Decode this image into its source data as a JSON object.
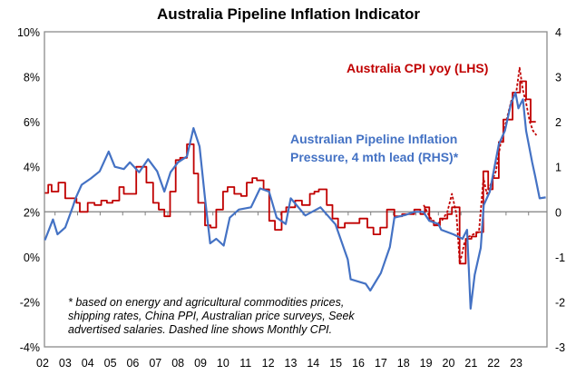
{
  "chart_data": {
    "type": "line",
    "title": "Australia Pipeline Inflation Indicator",
    "xlabel": "",
    "x_tick_labels": [
      "02",
      "03",
      "04",
      "05",
      "06",
      "07",
      "08",
      "09",
      "10",
      "11",
      "12",
      "13",
      "14",
      "15",
      "16",
      "17",
      "18",
      "19",
      "20",
      "21",
      "22",
      "23"
    ],
    "x_tick_years": [
      2002,
      2003,
      2004,
      2005,
      2006,
      2007,
      2008,
      2009,
      2010,
      2011,
      2012,
      2013,
      2014,
      2015,
      2016,
      2017,
      2018,
      2019,
      2020,
      2021,
      2022,
      2023
    ],
    "xlim": [
      2002,
      2024.4
    ],
    "y_left": {
      "ylim": [
        -4,
        10
      ],
      "ticks": [
        10,
        8,
        6,
        4,
        2,
        0,
        -2,
        -4
      ],
      "tick_labels": [
        "10%",
        "8%",
        "6%",
        "4%",
        "2%",
        "0%",
        "-2%",
        "-4%"
      ]
    },
    "y_right": {
      "ylim": [
        -3,
        4
      ],
      "ticks": [
        4,
        3,
        2,
        1,
        0,
        -1,
        -2,
        -3
      ],
      "tick_labels": [
        "4",
        "3",
        "2",
        "1",
        "0",
        "-1",
        "-2",
        "-3"
      ]
    },
    "grid": false,
    "series": [
      {
        "name": "Australia CPI yoy (LHS)",
        "axis": "left",
        "style": "step",
        "color": "#c00000",
        "points": [
          [
            2002.1,
            2.84
          ],
          [
            2002.25,
            3.2
          ],
          [
            2002.4,
            2.9
          ],
          [
            2002.7,
            3.3
          ],
          [
            2003.0,
            2.6
          ],
          [
            2003.5,
            2.4
          ],
          [
            2003.65,
            2.0
          ],
          [
            2004.0,
            2.4
          ],
          [
            2004.3,
            2.3
          ],
          [
            2004.6,
            2.5
          ],
          [
            2004.85,
            2.4
          ],
          [
            2005.1,
            2.5
          ],
          [
            2005.4,
            3.1
          ],
          [
            2005.6,
            2.8
          ],
          [
            2006.15,
            4.0
          ],
          [
            2006.6,
            3.3
          ],
          [
            2006.9,
            2.4
          ],
          [
            2007.15,
            2.1
          ],
          [
            2007.4,
            1.8
          ],
          [
            2007.65,
            2.9
          ],
          [
            2007.9,
            4.3
          ],
          [
            2008.1,
            4.4
          ],
          [
            2008.4,
            5.0
          ],
          [
            2008.7,
            3.7
          ],
          [
            2008.9,
            2.4
          ],
          [
            2009.2,
            1.4
          ],
          [
            2009.45,
            1.3
          ],
          [
            2009.7,
            2.1
          ],
          [
            2010.0,
            2.9
          ],
          [
            2010.2,
            3.1
          ],
          [
            2010.5,
            2.8
          ],
          [
            2010.8,
            2.7
          ],
          [
            2011.05,
            3.3
          ],
          [
            2011.3,
            3.5
          ],
          [
            2011.5,
            3.4
          ],
          [
            2011.8,
            3.0
          ],
          [
            2012.05,
            1.6
          ],
          [
            2012.3,
            1.2
          ],
          [
            2012.6,
            2.0
          ],
          [
            2012.8,
            2.2
          ],
          [
            2013.2,
            2.5
          ],
          [
            2013.5,
            2.3
          ],
          [
            2013.85,
            2.8
          ],
          [
            2014.05,
            2.9
          ],
          [
            2014.25,
            3.0
          ],
          [
            2014.6,
            2.3
          ],
          [
            2014.85,
            1.7
          ],
          [
            2015.1,
            1.3
          ],
          [
            2015.4,
            1.5
          ],
          [
            2016.05,
            1.7
          ],
          [
            2016.4,
            1.3
          ],
          [
            2016.67,
            1.0
          ],
          [
            2016.97,
            1.3
          ],
          [
            2017.27,
            2.1
          ],
          [
            2017.6,
            1.8
          ],
          [
            2017.94,
            1.9
          ],
          [
            2018.48,
            2.1
          ],
          [
            2018.75,
            1.9
          ],
          [
            2018.95,
            2.2
          ],
          [
            2019.15,
            1.6
          ],
          [
            2019.35,
            1.4
          ],
          [
            2019.62,
            1.7
          ],
          [
            2019.95,
            1.9
          ],
          [
            2020.15,
            2.2
          ],
          [
            2020.49,
            -0.3
          ],
          [
            2020.76,
            0.8
          ],
          [
            2021.02,
            0.9
          ],
          [
            2021.23,
            1.1
          ],
          [
            2021.54,
            3.8
          ],
          [
            2021.76,
            3.0
          ],
          [
            2021.96,
            3.5
          ],
          [
            2022.23,
            5.1
          ],
          [
            2022.43,
            6.1
          ],
          [
            2022.84,
            7.3
          ],
          [
            2023.17,
            7.8
          ],
          [
            2023.44,
            7.0
          ],
          [
            2023.64,
            6.0
          ],
          [
            2023.87,
            6.0
          ]
        ]
      },
      {
        "name": "Monthly CPI (dashed)",
        "axis": "left",
        "style": "dashed",
        "color": "#c00000",
        "points": [
          [
            2018.9,
            2.3
          ],
          [
            2019.1,
            1.9
          ],
          [
            2019.4,
            1.4
          ],
          [
            2019.7,
            1.6
          ],
          [
            2019.95,
            2.0
          ],
          [
            2020.15,
            2.8
          ],
          [
            2020.35,
            1.9
          ],
          [
            2020.5,
            -0.3
          ],
          [
            2020.7,
            0.6
          ],
          [
            2020.9,
            0.9
          ],
          [
            2021.1,
            1.0
          ],
          [
            2021.35,
            1.1
          ],
          [
            2021.55,
            3.5
          ],
          [
            2021.7,
            2.8
          ],
          [
            2021.9,
            3.3
          ],
          [
            2022.1,
            3.8
          ],
          [
            2022.3,
            5.0
          ],
          [
            2022.5,
            5.8
          ],
          [
            2022.8,
            7.0
          ],
          [
            2023.0,
            7.3
          ],
          [
            2023.15,
            8.4
          ],
          [
            2023.3,
            7.4
          ],
          [
            2023.45,
            6.8
          ],
          [
            2023.6,
            6.0
          ],
          [
            2023.75,
            5.6
          ],
          [
            2023.9,
            5.4
          ]
        ]
      },
      {
        "name": "Australian Pipeline Inflation Pressure, 4 mth lead (RHS)*",
        "axis": "right",
        "style": "line",
        "color": "#4472c4",
        "points": [
          [
            2002.1,
            -0.63
          ],
          [
            2002.46,
            -0.17
          ],
          [
            2002.66,
            -0.5
          ],
          [
            2003.0,
            -0.35
          ],
          [
            2003.33,
            0.1
          ],
          [
            2003.46,
            0.3
          ],
          [
            2003.73,
            0.6
          ],
          [
            2004.13,
            0.74
          ],
          [
            2004.53,
            0.9
          ],
          [
            2004.93,
            1.34
          ],
          [
            2005.2,
            1.0
          ],
          [
            2005.6,
            0.95
          ],
          [
            2005.87,
            1.1
          ],
          [
            2006.28,
            0.88
          ],
          [
            2006.68,
            1.17
          ],
          [
            2007.08,
            0.9
          ],
          [
            2007.4,
            0.45
          ],
          [
            2007.67,
            0.88
          ],
          [
            2008.0,
            1.1
          ],
          [
            2008.4,
            1.23
          ],
          [
            2008.69,
            1.86
          ],
          [
            2008.96,
            1.45
          ],
          [
            2009.2,
            0.3
          ],
          [
            2009.43,
            -0.7
          ],
          [
            2009.7,
            -0.6
          ],
          [
            2010.03,
            -0.75
          ],
          [
            2010.3,
            -0.13
          ],
          [
            2010.7,
            0.05
          ],
          [
            2011.24,
            0.1
          ],
          [
            2011.64,
            0.52
          ],
          [
            2012.04,
            0.45
          ],
          [
            2012.38,
            -0.13
          ],
          [
            2012.78,
            -0.27
          ],
          [
            2013.0,
            0.3
          ],
          [
            2013.65,
            -0.08
          ],
          [
            2014.32,
            0.1
          ],
          [
            2014.99,
            -0.28
          ],
          [
            2015.53,
            -1.06
          ],
          [
            2015.66,
            -1.5
          ],
          [
            2016.33,
            -1.6
          ],
          [
            2016.53,
            -1.75
          ],
          [
            2017.0,
            -1.36
          ],
          [
            2017.4,
            -0.78
          ],
          [
            2017.6,
            -0.13
          ],
          [
            2018.08,
            -0.07
          ],
          [
            2018.48,
            0.0
          ],
          [
            2018.88,
            0.0
          ],
          [
            2019.15,
            -0.2
          ],
          [
            2019.55,
            -0.27
          ],
          [
            2019.68,
            -0.4
          ],
          [
            2020.22,
            -0.5
          ],
          [
            2020.62,
            -0.6
          ],
          [
            2020.82,
            -0.4
          ],
          [
            2020.98,
            -2.15
          ],
          [
            2021.16,
            -1.4
          ],
          [
            2021.43,
            -0.8
          ],
          [
            2021.56,
            0.15
          ],
          [
            2021.83,
            0.45
          ],
          [
            2022.23,
            1.5
          ],
          [
            2022.5,
            1.8
          ],
          [
            2022.77,
            2.4
          ],
          [
            2022.97,
            2.65
          ],
          [
            2023.1,
            2.3
          ],
          [
            2023.3,
            2.5
          ],
          [
            2023.44,
            1.8
          ],
          [
            2023.71,
            1.1
          ],
          [
            2023.84,
            0.8
          ],
          [
            2024.04,
            0.3
          ],
          [
            2024.31,
            0.32
          ]
        ]
      }
    ],
    "annotations": {
      "cpi_label": "Australia CPI yoy (LHS)",
      "pipeline_label_line1": "Australian Pipeline Inflation",
      "pipeline_label_line2": "Pressure, 4 mth lead (RHS)*",
      "footnote_line1": "* based on energy and agricultural commodities prices,",
      "footnote_line2": "shipping rates, China PPI, Australian price surveys, Seek",
      "footnote_line3": "advertised salaries. Dashed line shows Monthly CPI."
    },
    "legend": "none (inline labels)"
  }
}
